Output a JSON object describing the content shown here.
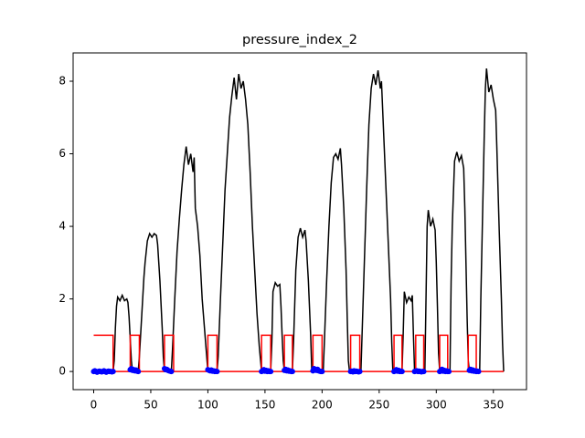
{
  "chart_data": {
    "type": "line",
    "title": "pressure_index_2",
    "xlim": [
      -18,
      379
    ],
    "ylim": [
      -0.5,
      8.78
    ],
    "xticks": [
      0,
      50,
      100,
      150,
      200,
      250,
      300,
      350
    ],
    "yticks": [
      0,
      2,
      4,
      6,
      8
    ],
    "series": [
      {
        "color": "#000000",
        "style": "line",
        "x": [
          0,
          17,
          18,
          19,
          20,
          21,
          23,
          25,
          27,
          29,
          30,
          31,
          32,
          33,
          34,
          39,
          40,
          42,
          44,
          45,
          47,
          49,
          51,
          53,
          55,
          56,
          58,
          60,
          61,
          62,
          68,
          69,
          71,
          73,
          75,
          77,
          79,
          81,
          83,
          85,
          87,
          88,
          89,
          91,
          93,
          95,
          97,
          99,
          100,
          108,
          109,
          111,
          113,
          115,
          117,
          119,
          121,
          123,
          125,
          127,
          129,
          131,
          133,
          135,
          137,
          139,
          141,
          143,
          145,
          147,
          155,
          156,
          157,
          159,
          161,
          163,
          164,
          165,
          166,
          167,
          174,
          175,
          177,
          179,
          181,
          183,
          185,
          186,
          188,
          190,
          191,
          201,
          202,
          204,
          206,
          208,
          210,
          212,
          214,
          216,
          217,
          219,
          221,
          222,
          223,
          224,
          234,
          235,
          237,
          239,
          241,
          243,
          245,
          247,
          249,
          251,
          252,
          254,
          256,
          258,
          260,
          261,
          262,
          270,
          271,
          272,
          274,
          276,
          278,
          279,
          280,
          281,
          290,
          291,
          292,
          293,
          295,
          297,
          299,
          300,
          301,
          302,
          303,
          312,
          313,
          314,
          316,
          318,
          320,
          322,
          324,
          325,
          326,
          327,
          328,
          329,
          338,
          339,
          341,
          342,
          343,
          344,
          346,
          348,
          350,
          352,
          353,
          355,
          357,
          358,
          359
        ],
        "values": [
          0,
          0,
          0.3,
          1.2,
          1.8,
          2.05,
          1.95,
          2.1,
          1.95,
          2.0,
          1.9,
          1.5,
          0.9,
          0.3,
          0,
          0,
          0.4,
          1.5,
          2.6,
          3.0,
          3.6,
          3.8,
          3.7,
          3.8,
          3.75,
          3.5,
          2.5,
          1.2,
          0.4,
          0,
          0,
          0.6,
          2.0,
          3.3,
          4.2,
          5.0,
          5.7,
          6.2,
          5.7,
          6.0,
          5.5,
          5.9,
          4.5,
          4.0,
          3.2,
          2.0,
          1.2,
          0.4,
          0,
          0,
          0.4,
          2.0,
          3.5,
          5.0,
          6.0,
          7.0,
          7.6,
          8.1,
          7.5,
          8.2,
          7.8,
          8.0,
          7.5,
          6.8,
          5.5,
          4.0,
          2.8,
          1.6,
          0.7,
          0,
          0,
          0.8,
          2.2,
          2.45,
          2.35,
          2.4,
          1.8,
          1.0,
          0.3,
          0,
          0,
          0.8,
          2.8,
          3.7,
          3.95,
          3.7,
          3.9,
          3.6,
          2.5,
          1.0,
          0,
          0,
          0.8,
          2.5,
          4.0,
          5.2,
          5.9,
          6.0,
          5.85,
          6.15,
          5.7,
          4.5,
          2.8,
          1.5,
          0.3,
          0,
          0,
          1.0,
          3.0,
          5.0,
          6.8,
          7.8,
          8.2,
          7.9,
          8.3,
          7.8,
          8.0,
          6.5,
          5.0,
          3.5,
          2.0,
          0.8,
          0,
          0,
          1.0,
          2.2,
          1.9,
          2.05,
          1.95,
          2.1,
          1.0,
          0,
          0,
          2.0,
          4.0,
          4.45,
          4.0,
          4.2,
          3.9,
          3.0,
          1.8,
          0.5,
          0,
          0,
          2.5,
          4.0,
          5.8,
          6.05,
          5.8,
          5.95,
          5.6,
          4.5,
          3.0,
          1.5,
          0.3,
          0,
          0,
          2.0,
          5.0,
          6.5,
          7.8,
          8.35,
          7.7,
          7.9,
          7.5,
          7.2,
          6.2,
          4.0,
          2.0,
          0.8,
          0
        ]
      },
      {
        "color": "#ff0000",
        "style": "line",
        "x": [
          0,
          17,
          17,
          32,
          32,
          40,
          40,
          62,
          62,
          70,
          70,
          100,
          100,
          108,
          108,
          147,
          147,
          155,
          155,
          167,
          167,
          174,
          174,
          192,
          192,
          200,
          200,
          225,
          225,
          233,
          233,
          263,
          263,
          270,
          270,
          282,
          282,
          289,
          289,
          303,
          303,
          310,
          310,
          328,
          328,
          335,
          335,
          359
        ],
        "values": [
          1,
          1,
          0,
          0,
          1,
          1,
          0,
          0,
          1,
          1,
          0,
          0,
          1,
          1,
          0,
          0,
          1,
          1,
          0,
          0,
          1,
          1,
          0,
          0,
          1,
          1,
          0,
          0,
          1,
          1,
          0,
          0,
          1,
          1,
          0,
          0,
          1,
          1,
          0,
          0,
          1,
          1,
          0,
          0,
          1,
          1,
          0,
          0
        ]
      },
      {
        "color": "#0000ff",
        "style": "markers",
        "x": [
          0,
          1,
          2,
          3,
          4,
          5,
          6,
          7,
          8,
          9,
          10,
          11,
          12,
          13,
          14,
          15,
          16,
          17,
          32,
          33,
          34,
          35,
          36,
          37,
          38,
          39,
          62,
          63,
          64,
          65,
          66,
          67,
          68,
          100,
          101,
          102,
          103,
          104,
          105,
          106,
          107,
          108,
          147,
          148,
          149,
          150,
          151,
          152,
          153,
          154,
          155,
          167,
          168,
          169,
          170,
          171,
          172,
          173,
          174,
          192,
          193,
          194,
          195,
          196,
          197,
          198,
          199,
          200,
          225,
          226,
          227,
          228,
          229,
          230,
          231,
          232,
          233,
          263,
          264,
          265,
          266,
          267,
          268,
          269,
          270,
          281,
          282,
          283,
          284,
          285,
          286,
          287,
          288,
          289,
          303,
          304,
          305,
          306,
          307,
          308,
          309,
          310,
          311,
          329,
          330,
          331,
          332,
          333,
          334,
          335,
          336,
          337
        ],
        "values": [
          0,
          0.02,
          0,
          -0.02,
          0,
          0.01,
          0,
          -0.01,
          0,
          0.02,
          0,
          -0.02,
          0,
          0.01,
          0,
          0,
          -0.01,
          0,
          0.05,
          0.08,
          0.03,
          0.05,
          0.02,
          0.04,
          0.01,
          0,
          0.08,
          0.05,
          0.06,
          0.03,
          0.02,
          0.01,
          0,
          0.05,
          0.03,
          0.02,
          0.04,
          0.01,
          0.02,
          0,
          0.01,
          0,
          0,
          0.02,
          0.05,
          0.01,
          0.03,
          0,
          0.02,
          0,
          0,
          0.03,
          0.06,
          0.02,
          0.04,
          0.01,
          0.02,
          0,
          0,
          0.02,
          0.08,
          0.05,
          0.03,
          0.06,
          0.02,
          0.01,
          0,
          0,
          0,
          0.01,
          -0.01,
          0.02,
          0,
          0.01,
          0,
          -0.01,
          0,
          0,
          0.02,
          0.05,
          0.01,
          0.03,
          0,
          0.01,
          0,
          0,
          0.01,
          0.02,
          0,
          0.01,
          0,
          -0.01,
          0,
          0,
          0,
          0.02,
          0.06,
          0.01,
          0.03,
          0,
          0.02,
          0,
          0,
          0.03,
          0.06,
          0.02,
          0.04,
          0.01,
          0.02,
          0,
          0.01,
          0
        ]
      }
    ]
  }
}
